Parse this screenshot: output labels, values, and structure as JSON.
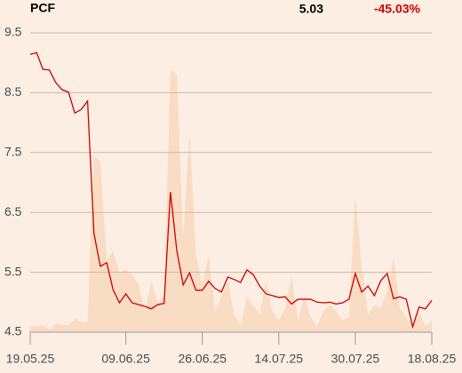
{
  "chart_data": {
    "type": "line",
    "title": "PCF",
    "last_price": "5.03",
    "change": "-45.03%",
    "categories": [
      "19.05.25",
      null,
      null,
      null,
      null,
      null,
      null,
      null,
      null,
      null,
      null,
      null,
      null,
      null,
      null,
      "09.06.25",
      null,
      null,
      null,
      null,
      null,
      null,
      null,
      null,
      null,
      null,
      null,
      "26.06.25",
      null,
      null,
      null,
      null,
      null,
      null,
      null,
      null,
      null,
      null,
      null,
      "14.07.25",
      null,
      null,
      null,
      null,
      null,
      null,
      null,
      null,
      null,
      null,
      null,
      "30.07.25",
      null,
      null,
      null,
      null,
      null,
      null,
      null,
      null,
      null,
      null,
      null,
      "18.08.25"
    ],
    "series": [
      {
        "style": "area",
        "color": "#f9dcc4",
        "values": [
          4.6,
          4.6,
          4.62,
          4.55,
          4.65,
          4.62,
          4.62,
          4.72,
          4.67,
          4.67,
          7.45,
          7.35,
          5.7,
          5.85,
          5.5,
          5.55,
          5.45,
          5.3,
          4.85,
          5.35,
          5.0,
          5.1,
          8.9,
          8.8,
          6.1,
          7.85,
          5.8,
          5.3,
          5.8,
          4.85,
          5.1,
          5.35,
          4.8,
          4.6,
          5.1,
          4.95,
          4.8,
          5.35,
          4.85,
          4.7,
          4.9,
          5.45,
          4.7,
          5.1,
          4.75,
          4.6,
          4.85,
          4.95,
          4.85,
          4.7,
          4.75,
          6.8,
          5.6,
          4.8,
          4.95,
          4.9,
          5.2,
          5.75,
          4.9,
          4.75,
          4.6,
          4.85,
          4.6,
          4.7
        ]
      },
      {
        "style": "line",
        "color": "#cc0000",
        "values": [
          9.14,
          9.17,
          8.89,
          8.88,
          8.67,
          8.55,
          8.51,
          8.16,
          8.22,
          8.36,
          6.15,
          5.6,
          5.66,
          5.21,
          4.99,
          5.14,
          4.99,
          4.96,
          4.93,
          4.89,
          4.96,
          4.98,
          6.84,
          5.86,
          5.29,
          5.49,
          5.2,
          5.2,
          5.35,
          5.23,
          5.17,
          5.42,
          5.38,
          5.33,
          5.54,
          5.46,
          5.27,
          5.14,
          5.11,
          5.08,
          5.09,
          4.97,
          5.05,
          5.05,
          5.05,
          5.0,
          4.99,
          5.0,
          4.97,
          4.99,
          5.05,
          5.48,
          5.17,
          5.27,
          5.11,
          5.36,
          5.48,
          5.06,
          5.09,
          5.05,
          4.59,
          4.92,
          4.89,
          5.03
        ]
      }
    ],
    "ylim": [
      4.5,
      9.5
    ],
    "yticks": [
      4.5,
      5.5,
      6.5,
      7.5,
      8.5,
      9.5
    ],
    "grid": true
  }
}
